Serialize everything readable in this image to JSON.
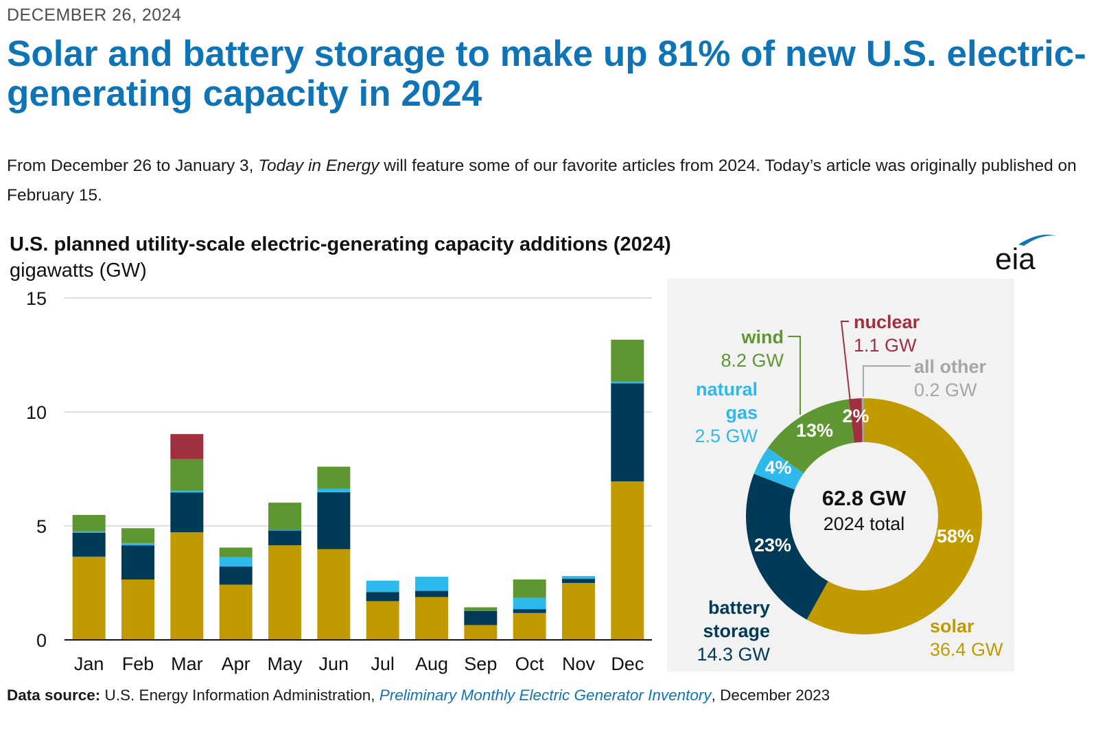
{
  "article": {
    "date": "DECEMBER 26, 2024",
    "headline": "Solar and battery storage to make up 81% of new U.S. electric-generating capacity in 2024",
    "intro_before": "From December 26 to January 3, ",
    "intro_em": "Today in Energy",
    "intro_after": " will feature some of our favorite articles from 2024. Today’s article was originally published on February 15."
  },
  "logo": {
    "text": "eia",
    "color": "#0f74b6"
  },
  "source": {
    "label": "Data source:",
    "org": " U.S. Energy Information Administration, ",
    "publication": "Preliminary Monthly Electric Generator Inventory",
    "date": ", December 2023"
  },
  "colors": {
    "solar": "#c19a00",
    "battery storage": "#003a56",
    "natural gas": "#2db9ec",
    "wind": "#5e9731",
    "nuclear": "#a1303f",
    "all other": "#a6a6a6"
  },
  "chart_data": [
    {
      "type": "bar",
      "stacked": true,
      "title": "U.S. planned utility-scale electric-generating capacity additions (2024)",
      "ylabel": "gigawatts (GW)",
      "xlabel": "",
      "ylim": [
        0,
        15
      ],
      "yticks": [
        0,
        5,
        10,
        15
      ],
      "grid": true,
      "legend": "none",
      "categories": [
        "Jan",
        "Feb",
        "Mar",
        "Apr",
        "May",
        "Jun",
        "Jul",
        "Aug",
        "Sep",
        "Oct",
        "Nov",
        "Dec"
      ],
      "series": [
        {
          "key": "solar",
          "values": [
            3.65,
            2.65,
            4.72,
            2.42,
            4.15,
            3.98,
            1.7,
            1.88,
            0.65,
            1.18,
            2.5,
            6.95
          ]
        },
        {
          "key": "battery storage",
          "values": [
            1.05,
            1.5,
            1.75,
            0.8,
            0.65,
            2.5,
            0.4,
            0.27,
            0.62,
            0.17,
            0.18,
            4.3
          ]
        },
        {
          "key": "natural gas",
          "values": [
            0.05,
            0.1,
            0.08,
            0.4,
            0.02,
            0.15,
            0.5,
            0.62,
            0.0,
            0.5,
            0.12,
            0.07
          ]
        },
        {
          "key": "wind",
          "values": [
            0.73,
            0.65,
            1.38,
            0.43,
            1.2,
            0.97,
            0.0,
            0.0,
            0.16,
            0.8,
            0.0,
            1.85
          ]
        },
        {
          "key": "nuclear",
          "values": [
            0,
            0,
            1.1,
            0,
            0,
            0,
            0,
            0,
            0,
            0,
            0,
            0
          ]
        }
      ]
    },
    {
      "type": "pie",
      "style": "donut",
      "center_value": "62.8 GW",
      "center_label": "2024 total",
      "slices": [
        {
          "key": "solar",
          "name": "solar",
          "value": 36.4,
          "value_label": "36.4 GW",
          "pct_label": "58%"
        },
        {
          "key": "battery storage",
          "name_lines": [
            "battery",
            "storage"
          ],
          "value": 14.3,
          "value_label": "14.3 GW",
          "pct_label": "23%"
        },
        {
          "key": "natural gas",
          "name_lines": [
            "natural",
            "gas"
          ],
          "value": 2.5,
          "value_label": "2.5 GW",
          "pct_label": "4%"
        },
        {
          "key": "wind",
          "name": "wind",
          "value": 8.2,
          "value_label": "8.2 GW",
          "pct_label": "13%"
        },
        {
          "key": "nuclear",
          "name": "nuclear",
          "value": 1.1,
          "value_label": "1.1 GW",
          "pct_label": "2%"
        },
        {
          "key": "all other",
          "name": "all other",
          "value": 0.2,
          "value_label": "0.2 GW",
          "pct_label": ""
        }
      ]
    }
  ]
}
